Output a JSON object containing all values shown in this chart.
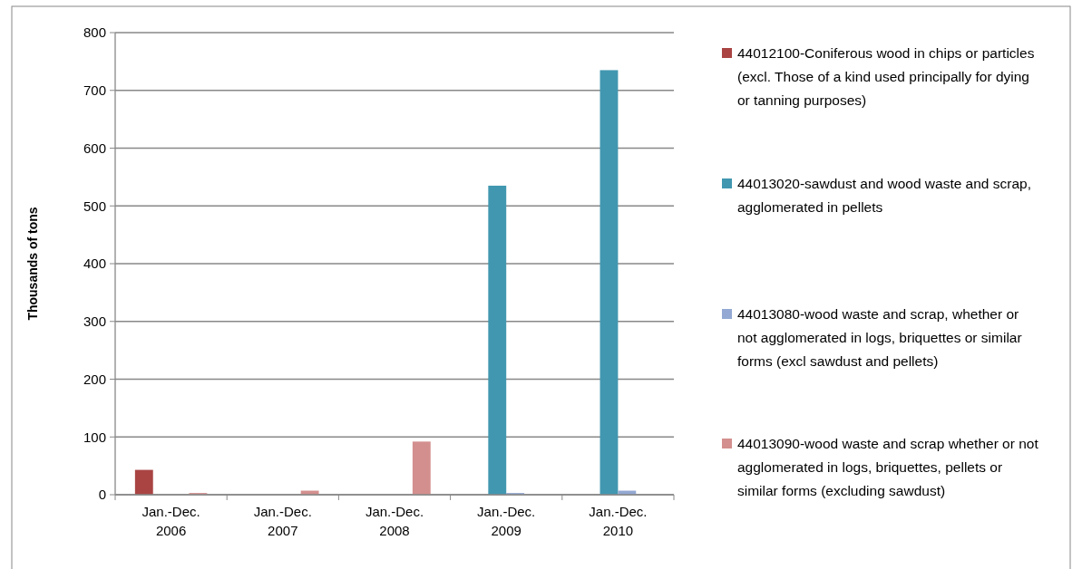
{
  "chart_data": {
    "type": "bar",
    "ylabel": "Thousands of tons",
    "categories": [
      "Jan.-Dec. 2006",
      "Jan.-Dec. 2007",
      "Jan.-Dec. 2008",
      "Jan.-Dec. 2009",
      "Jan.-Dec. 2010"
    ],
    "series": [
      {
        "name": "44012100-Coniferous wood in chips or particles (excl. Those of a kind used principally for dying or tanning purposes)",
        "color": "#a94443",
        "values": [
          43,
          0,
          0,
          0,
          0
        ]
      },
      {
        "name": "44013020-sawdust and wood waste and scrap, agglomerated in pellets",
        "color": "#4197b0",
        "values": [
          0,
          0,
          0,
          535,
          735
        ]
      },
      {
        "name": "44013080-wood waste and scrap, whether or not agglomerated in logs, briquettes or similar forms (excl sawdust and pellets)",
        "color": "#93a9d3",
        "values": [
          0,
          0,
          0,
          3,
          7
        ]
      },
      {
        "name": "44013090-wood waste and scrap whether or not agglomerated in logs, briquettes, pellets or similar forms (excluding sawdust)",
        "color": "#d38f8e",
        "values": [
          3,
          7,
          92,
          0,
          0
        ]
      }
    ],
    "ylim": [
      0,
      800
    ],
    "yticks": [
      0,
      100,
      200,
      300,
      400,
      500,
      600,
      700,
      800
    ],
    "grid": "y",
    "legend": "right"
  }
}
